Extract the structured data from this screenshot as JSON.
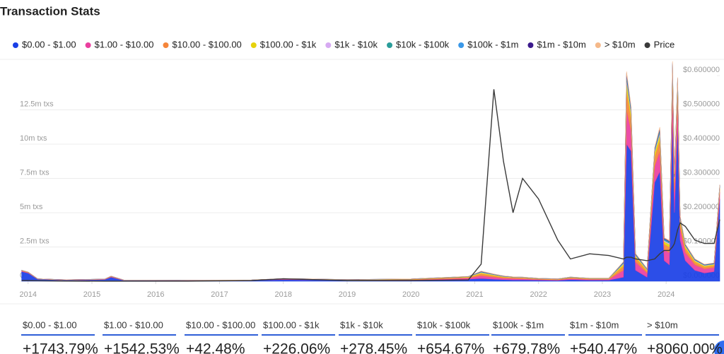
{
  "chart_data": {
    "type": "area",
    "title": "Transaction Stats",
    "x": [
      2013.9,
      2014.0,
      2014.15,
      2014.6,
      2015.2,
      2015.3,
      2015.5,
      2016.5,
      2017.5,
      2018.0,
      2019.0,
      2020.0,
      2020.9,
      2021.1,
      2021.3,
      2021.45,
      2021.6,
      2021.75,
      2022.0,
      2022.3,
      2022.5,
      2022.8,
      2023.1,
      2023.33,
      2023.38,
      2023.45,
      2023.52,
      2023.7,
      2023.82,
      2023.9,
      2023.97,
      2024.05,
      2024.1,
      2024.13,
      2024.18,
      2024.22,
      2024.3,
      2024.45,
      2024.6,
      2024.75,
      2024.84
    ],
    "series": [
      {
        "name": "$0.00 - $1.00",
        "color": "#1a3fe6",
        "values": [
          700000,
          600000,
          150000,
          80000,
          120000,
          300000,
          60000,
          50000,
          60000,
          120000,
          60000,
          80000,
          150000,
          200000,
          150000,
          120000,
          100000,
          100000,
          80000,
          60000,
          120000,
          80000,
          80000,
          300000,
          10000000,
          9500000,
          800000,
          300000,
          7200000,
          8000000,
          1500000,
          1200000,
          12200000,
          5000000,
          11500000,
          3000000,
          1500000,
          800000,
          600000,
          700000,
          6000000
        ]
      },
      {
        "name": "$1.00 - $10.00",
        "color": "#ea3f9f",
        "values": [
          50000,
          30000,
          10000,
          10000,
          20000,
          30000,
          10000,
          10000,
          10000,
          30000,
          20000,
          30000,
          80000,
          200000,
          150000,
          100000,
          100000,
          80000,
          50000,
          40000,
          80000,
          60000,
          60000,
          500000,
          2500000,
          1500000,
          600000,
          300000,
          1200000,
          1500000,
          800000,
          900000,
          2000000,
          1500000,
          1800000,
          900000,
          600000,
          400000,
          300000,
          300000,
          500000
        ]
      },
      {
        "name": "$10.00 - $100.00",
        "color": "#f5853a",
        "values": [
          30000,
          20000,
          10000,
          10000,
          10000,
          20000,
          10000,
          10000,
          10000,
          20000,
          20000,
          30000,
          60000,
          150000,
          100000,
          80000,
          60000,
          60000,
          40000,
          30000,
          50000,
          40000,
          40000,
          300000,
          1500000,
          800000,
          300000,
          150000,
          700000,
          800000,
          400000,
          400000,
          900000,
          700000,
          800000,
          400000,
          300000,
          200000,
          150000,
          150000,
          250000
        ]
      },
      {
        "name": "$100.00 - $1k",
        "color": "#e6d20c",
        "values": [
          10000,
          10000,
          5000,
          5000,
          5000,
          10000,
          5000,
          5000,
          5000,
          10000,
          10000,
          15000,
          30000,
          80000,
          60000,
          40000,
          30000,
          30000,
          20000,
          20000,
          30000,
          20000,
          20000,
          150000,
          600000,
          400000,
          150000,
          80000,
          300000,
          400000,
          200000,
          200000,
          400000,
          300000,
          350000,
          200000,
          150000,
          100000,
          80000,
          80000,
          120000
        ]
      },
      {
        "name": "$1k - $10k",
        "color": "#d7aaf2",
        "values": [
          5000,
          5000,
          2000,
          2000,
          2000,
          5000,
          2000,
          2000,
          2000,
          5000,
          5000,
          5000,
          10000,
          30000,
          20000,
          15000,
          10000,
          10000,
          8000,
          8000,
          10000,
          8000,
          8000,
          50000,
          200000,
          150000,
          50000,
          30000,
          100000,
          150000,
          80000,
          80000,
          150000,
          100000,
          120000,
          80000,
          50000,
          40000,
          30000,
          30000,
          50000
        ]
      },
      {
        "name": "$10k - $100k",
        "color": "#2a9d9a",
        "values": [
          5000,
          5000,
          2000,
          2000,
          2000,
          5000,
          2000,
          2000,
          2000,
          5000,
          5000,
          5000,
          10000,
          30000,
          20000,
          15000,
          10000,
          10000,
          8000,
          8000,
          10000,
          8000,
          8000,
          50000,
          200000,
          150000,
          50000,
          30000,
          100000,
          150000,
          80000,
          80000,
          150000,
          100000,
          120000,
          80000,
          50000,
          40000,
          30000,
          30000,
          50000
        ]
      },
      {
        "name": "$100k - $1m",
        "color": "#3a98e8",
        "values": [
          2000,
          2000,
          1000,
          1000,
          1000,
          2000,
          1000,
          1000,
          1000,
          2000,
          2000,
          2000,
          5000,
          15000,
          10000,
          8000,
          5000,
          5000,
          4000,
          4000,
          5000,
          4000,
          4000,
          25000,
          100000,
          80000,
          25000,
          15000,
          50000,
          80000,
          40000,
          40000,
          80000,
          50000,
          60000,
          40000,
          25000,
          20000,
          15000,
          15000,
          25000
        ]
      },
      {
        "name": "$1m - $10m",
        "color": "#3b1a8c",
        "values": [
          2000,
          2000,
          1000,
          1000,
          1000,
          2000,
          1000,
          1000,
          1000,
          2000,
          2000,
          2000,
          5000,
          15000,
          10000,
          8000,
          5000,
          5000,
          4000,
          4000,
          5000,
          4000,
          4000,
          25000,
          100000,
          80000,
          25000,
          15000,
          50000,
          80000,
          40000,
          40000,
          80000,
          50000,
          60000,
          40000,
          25000,
          20000,
          15000,
          15000,
          25000
        ]
      },
      {
        "name": "> $10m",
        "color": "#f5b98a",
        "values": [
          2000,
          2000,
          1000,
          1000,
          1000,
          2000,
          1000,
          1000,
          1000,
          2000,
          2000,
          2000,
          5000,
          15000,
          10000,
          8000,
          5000,
          5000,
          4000,
          4000,
          5000,
          4000,
          4000,
          25000,
          100000,
          80000,
          25000,
          15000,
          50000,
          80000,
          40000,
          40000,
          80000,
          50000,
          60000,
          40000,
          25000,
          20000,
          15000,
          15000,
          25000
        ]
      },
      {
        "name": "Price",
        "color": "#3a3a3a",
        "axis": "y2",
        "values": [
          0.002,
          0.002,
          0.0015,
          0.0005,
          0.0003,
          0.0003,
          0.0002,
          0.0003,
          0.002,
          0.007,
          0.002,
          0.002,
          0.004,
          0.05,
          0.56,
          0.35,
          0.2,
          0.3,
          0.24,
          0.12,
          0.065,
          0.08,
          0.075,
          0.065,
          0.07,
          0.07,
          0.065,
          0.06,
          0.065,
          0.08,
          0.09,
          0.09,
          0.1,
          0.11,
          0.15,
          0.17,
          0.16,
          0.12,
          0.11,
          0.11,
          0.18
        ]
      }
    ],
    "xlim": [
      2013.87,
      2024.84
    ],
    "xticks": [
      2014,
      2015,
      2016,
      2017,
      2018,
      2019,
      2020,
      2021,
      2022,
      2023,
      2024
    ],
    "ylim": [
      0,
      15000000
    ],
    "yticks": [
      0,
      {
        "value": 2500000,
        "label": "2.5m txs"
      },
      {
        "value": 5000000,
        "label": "5m txs"
      },
      {
        "value": 7500000,
        "label": "7.5m txs"
      },
      {
        "value": 10000000,
        "label": "10m txs"
      },
      {
        "value": 12500000,
        "label": "12.5m txs"
      }
    ],
    "y2lim": [
      0,
      0.6
    ],
    "y2ticks": [
      {
        "value": 0,
        "label": "$0.000000"
      },
      {
        "value": 0.1,
        "label": "$0.100000"
      },
      {
        "value": 0.2,
        "label": "$0.200000"
      },
      {
        "value": 0.3,
        "label": "$0.300000"
      },
      {
        "value": 0.4,
        "label": "$0.400000"
      },
      {
        "value": 0.5,
        "label": "$0.500000"
      },
      {
        "value": 0.6,
        "label": "$0.600000"
      }
    ],
    "grid": true,
    "legend": "top"
  },
  "stats": [
    {
      "label": "$0.00 - $1.00",
      "change": "+1743.79%"
    },
    {
      "label": "$1.00 - $10.00",
      "change": "+1542.53%"
    },
    {
      "label": "$10.00 - $100.00",
      "change": "+42.48%"
    },
    {
      "label": "$100.00 - $1k",
      "change": "+226.06%"
    },
    {
      "label": "$1k - $10k",
      "change": "+278.45%"
    },
    {
      "label": "$10k - $100k",
      "change": "+654.67%"
    },
    {
      "label": "$100k - $1m",
      "change": "+679.78%"
    },
    {
      "label": "$1m - $10m",
      "change": "+540.47%"
    },
    {
      "label": "> $10m",
      "change": "+8060.00%"
    }
  ]
}
